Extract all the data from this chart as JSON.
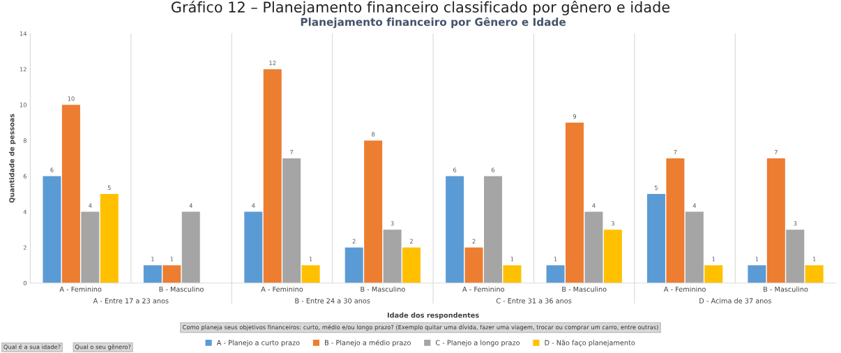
{
  "chart_data": {
    "type": "bar",
    "title": "Planejamento financeiro por Gênero e Idade",
    "xlabel": "Idade dos respondentes",
    "ylabel": "Quantidade de pessoas",
    "categories": [
      "A - Feminino",
      "B - Masculino",
      "A - Feminino",
      "B - Masculino",
      "A - Feminino",
      "B - Masculino",
      "A - Feminino",
      "B - Masculino"
    ],
    "series": [
      {
        "name": "A - Planejo a curto prazo",
        "color": "#5b9bd5",
        "values": [
          6,
          1,
          4,
          2,
          6,
          1,
          5,
          1
        ]
      },
      {
        "name": "B - Planejo a médio prazo",
        "color": "#ed7d31",
        "values": [
          10,
          1,
          12,
          8,
          2,
          9,
          7,
          7
        ]
      },
      {
        "name": "C - Planejo a longo prazo",
        "color": "#a5a5a5",
        "values": [
          4,
          4,
          7,
          3,
          6,
          4,
          4,
          3
        ]
      },
      {
        "name": "D - Não faço planejamento",
        "color": "#ffc000",
        "values": [
          5,
          null,
          1,
          2,
          1,
          3,
          1,
          1
        ]
      }
    ],
    "ylim": [
      0,
      14
    ],
    "yticks": [
      0,
      2,
      4,
      6,
      8,
      10,
      12,
      14
    ],
    "grid": "x",
    "legend": "bottom",
    "data_labels": true,
    "annotations": [
      "A - Entre 17 a 23 anos",
      "B - Entre 24 a 30 anos",
      "C - Entre 31 a 36 anos",
      "D - Acima de 37 anos",
      "Gráfico 12 – Planejamento financeiro classificado por gênero e idade",
      "Como planeja seus objetivos financeiros: curto, médio e/ou longo prazo? (Exemplo quitar uma dívida, fazer uma viagem, trocar ou comprar um carro, entre outras)",
      "Qual é a sua idade?",
      "Qual o seu gênero?"
    ]
  }
}
